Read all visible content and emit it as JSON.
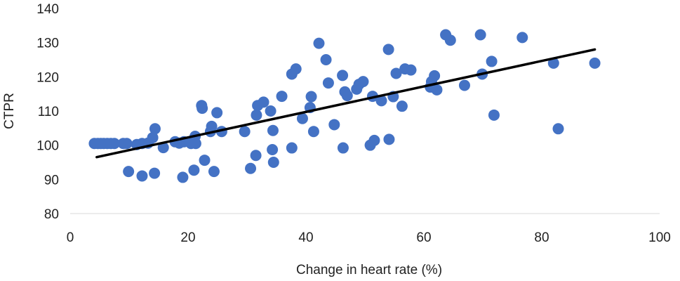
{
  "chart_data": {
    "type": "scatter",
    "title": "",
    "xlabel": "Change in heart rate (%)",
    "ylabel": "CTPR",
    "xlim": [
      0,
      100
    ],
    "ylim": [
      80,
      140
    ],
    "x_ticks": [
      "0",
      "20",
      "40",
      "60",
      "80",
      "100"
    ],
    "y_ticks": [
      "80",
      "90",
      "100",
      "110",
      "120",
      "130",
      "140"
    ],
    "grid": false,
    "legend": "none",
    "marker_color": "#4472C4",
    "trendline": {
      "color": "#000000",
      "x": [
        4.5,
        89
      ],
      "y": [
        96.5,
        128
      ]
    },
    "series": [
      {
        "points": [
          [
            4.1,
            100.5
          ],
          [
            4.7,
            100.5
          ],
          [
            5.2,
            100.5
          ],
          [
            5.7,
            100.5
          ],
          [
            6.3,
            100.5
          ],
          [
            6.9,
            100.5
          ],
          [
            7.5,
            100.5
          ],
          [
            9.0,
            100.5
          ],
          [
            9.6,
            100.5
          ],
          [
            11.3,
            100.2
          ],
          [
            12.2,
            100.5
          ],
          [
            13.2,
            100.6
          ],
          [
            14.0,
            102.2
          ],
          [
            14.4,
            104.8
          ],
          [
            15.8,
            99.3
          ],
          [
            17.8,
            101.0
          ],
          [
            18.5,
            100.6
          ],
          [
            19.3,
            101.0
          ],
          [
            20.5,
            100.5
          ],
          [
            21.2,
            102.6
          ],
          [
            21.3,
            100.5
          ],
          [
            22.3,
            111.6
          ],
          [
            22.4,
            110.8
          ],
          [
            23.8,
            104.0
          ],
          [
            24.0,
            105.5
          ],
          [
            24.9,
            109.5
          ],
          [
            25.7,
            104.0
          ],
          [
            29.6,
            104.0
          ],
          [
            31.5,
            97.0
          ],
          [
            31.6,
            108.8
          ],
          [
            31.8,
            111.6
          ],
          [
            32.8,
            112.6
          ],
          [
            34.0,
            110.0
          ],
          [
            34.4,
            104.3
          ],
          [
            34.3,
            98.7
          ],
          [
            34.5,
            95.0
          ],
          [
            35.9,
            114.3
          ],
          [
            37.6,
            99.2
          ],
          [
            37.6,
            120.8
          ],
          [
            38.3,
            122.3
          ],
          [
            39.4,
            107.8
          ],
          [
            40.7,
            111.0
          ],
          [
            40.9,
            114.2
          ],
          [
            41.3,
            104.0
          ],
          [
            42.2,
            129.8
          ],
          [
            43.4,
            125.0
          ],
          [
            43.8,
            118.2
          ],
          [
            44.8,
            106.0
          ],
          [
            46.2,
            120.4
          ],
          [
            46.3,
            99.2
          ],
          [
            46.6,
            115.6
          ],
          [
            47.0,
            114.5
          ],
          [
            48.6,
            116.4
          ],
          [
            49.0,
            117.8
          ],
          [
            49.7,
            118.6
          ],
          [
            50.9,
            100.0
          ],
          [
            51.3,
            114.3
          ],
          [
            51.6,
            101.4
          ],
          [
            52.8,
            113.0
          ],
          [
            54.0,
            128.0
          ],
          [
            54.1,
            101.7
          ],
          [
            54.8,
            114.2
          ],
          [
            55.3,
            121.0
          ],
          [
            56.3,
            111.4
          ],
          [
            56.8,
            122.3
          ],
          [
            57.8,
            122.0
          ],
          [
            61.1,
            117.0
          ],
          [
            61.3,
            118.6
          ],
          [
            61.8,
            120.3
          ],
          [
            62.2,
            116.2
          ],
          [
            63.7,
            132.3
          ],
          [
            64.5,
            130.7
          ],
          [
            66.9,
            117.5
          ],
          [
            69.6,
            132.3
          ],
          [
            69.9,
            120.8
          ],
          [
            71.5,
            124.5
          ],
          [
            71.9,
            108.8
          ],
          [
            76.7,
            131.5
          ],
          [
            82.0,
            124.0
          ],
          [
            82.8,
            104.8
          ],
          [
            89.0,
            124.0
          ],
          [
            9.9,
            92.3
          ],
          [
            12.2,
            91.0
          ],
          [
            14.3,
            91.8
          ],
          [
            19.1,
            90.6
          ],
          [
            21.0,
            92.7
          ],
          [
            22.8,
            95.6
          ],
          [
            24.4,
            92.3
          ],
          [
            30.6,
            93.2
          ]
        ]
      }
    ]
  }
}
